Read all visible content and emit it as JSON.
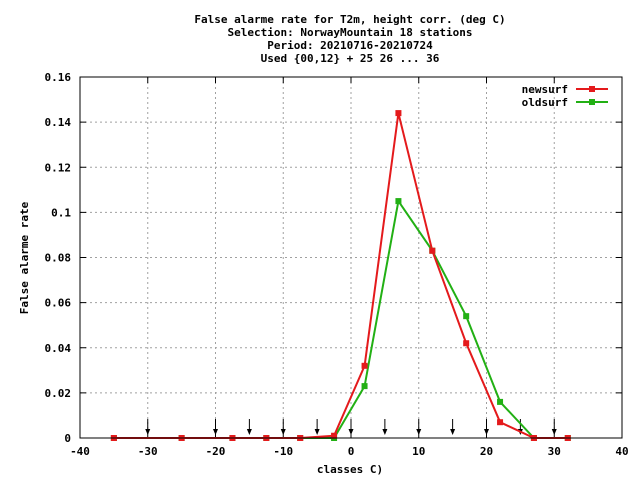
{
  "chart_data": {
    "type": "line",
    "title_lines": [
      "False alarme rate  for T2m, height corr. (deg C)",
      "Selection: NorwayMountain     18 stations",
      "Period: 20210716-20210724",
      "Used {00,12} + 25 26 ... 36"
    ],
    "xlabel": "classes C)",
    "ylabel": "False alarme rate",
    "xlim": [
      -40,
      40
    ],
    "ylim": [
      0,
      0.16
    ],
    "xticks": [
      -40,
      -30,
      -20,
      -10,
      0,
      10,
      20,
      30,
      40
    ],
    "xtick_labels": [
      "-40",
      "-30",
      "-20",
      "-10",
      "0",
      "10",
      "20",
      "30",
      "40"
    ],
    "yticks": [
      0,
      0.02,
      0.04,
      0.06,
      0.08,
      0.1,
      0.12,
      0.14,
      0.16
    ],
    "ytick_labels": [
      "0",
      "0.02",
      "0.04",
      "0.06",
      "0.08",
      "0.1",
      "0.12",
      "0.14",
      "0.16"
    ],
    "grid": true,
    "legend_position": "top-right",
    "series": [
      {
        "name": "newsurf",
        "color": "#e41a1c",
        "x": [
          -35,
          -25,
          -17.5,
          -12.5,
          -7.5,
          -2.5,
          2,
          7,
          12,
          17,
          22,
          27,
          32
        ],
        "y": [
          0,
          0,
          0,
          0,
          0,
          0.001,
          0.032,
          0.144,
          0.083,
          0.042,
          0.007,
          0,
          0
        ]
      },
      {
        "name": "oldsurf",
        "color": "#22b014",
        "x": [
          -35,
          -25,
          -17.5,
          -12.5,
          -7.5,
          -2.5,
          2,
          7,
          12,
          17,
          22,
          27,
          32
        ],
        "y": [
          0,
          0,
          0,
          0,
          0,
          0,
          0.023,
          0.105,
          0.083,
          0.054,
          0.016,
          0,
          0
        ]
      }
    ],
    "class_boundaries": [
      -30,
      -20,
      -15,
      -10,
      -5,
      0,
      5,
      10,
      15,
      20,
      25,
      30
    ]
  }
}
